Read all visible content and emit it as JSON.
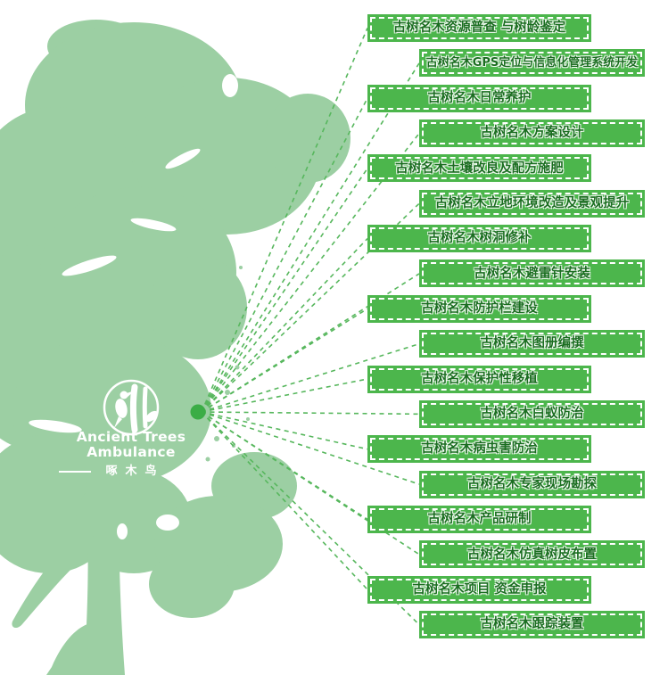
{
  "brand": {
    "name_en": "Ancient Trees Ambulance",
    "name_cn": "啄木鸟"
  },
  "diagram": {
    "services": [
      "古树名木资源普查 与树龄鉴定",
      "古树名木GPS定位与信息化管理系统开发",
      "古树名木日常养护",
      "古树名木方案设计",
      "古树名木土壤改良及配方施肥",
      "古树名木立地环境改造及景观提升",
      "古树名木树洞修补",
      "古树名木避雷针安装",
      "古树名木防护栏建设",
      "古树名木图册编撰",
      "古树名木保护性移植",
      "古树名木白蚁防治",
      "古树名木病虫害防治",
      "古树名木专家现场勘探",
      "古树名木产品研制",
      "古树名木仿真树皮布置",
      "古树名木项目 资金申报",
      "古树名木跟踪装置"
    ]
  },
  "icons": {
    "logo": "woodpecker-circle-icon"
  },
  "colors": {
    "tree_green": "#9CCFA3",
    "box_green": "#4CB64C",
    "box_text_green": "#1A6E20",
    "connector_green": "#57B75D",
    "hub_dot_green": "#3BAD46",
    "logo_white": "#FFFFFF"
  }
}
